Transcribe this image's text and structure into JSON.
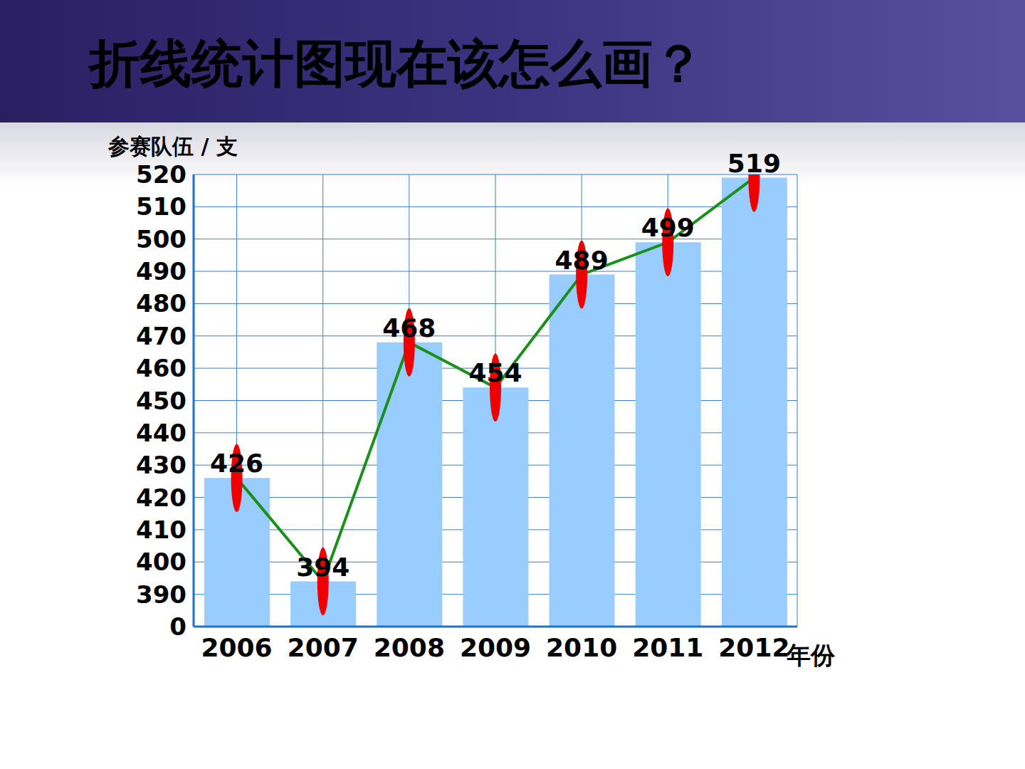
{
  "chart_data": {
    "type": "bar",
    "title": "折线统计图现在该怎么画？",
    "y_label": "参赛队伍 / 支",
    "x_label": "年份",
    "categories": [
      "2006",
      "2007",
      "2008",
      "2009",
      "2010",
      "2011",
      "2012"
    ],
    "series": [
      {
        "type": "bar",
        "color": "#99ccff",
        "values": [
          426,
          394,
          468,
          454,
          489,
          499,
          519
        ]
      },
      {
        "type": "line",
        "color": "#1a8f1a",
        "marker": "ellipse",
        "values": [
          426,
          394,
          468,
          454,
          489,
          499,
          519
        ]
      }
    ],
    "ylim": [
      0,
      520
    ],
    "yticks": [
      0,
      390,
      400,
      410,
      420,
      430,
      440,
      450,
      460,
      470,
      480,
      490,
      500,
      510,
      520
    ],
    "grid": true,
    "data_labels": true
  }
}
